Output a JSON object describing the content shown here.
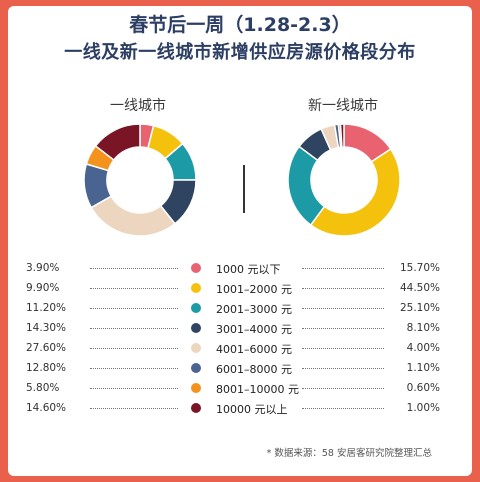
{
  "title_line1": "春节后一周（1.28-2.3）",
  "title_line2": "一线及新一线城市新增供应房源价格段分布",
  "note": "* 数据来源：58 安居客研究院整理汇总",
  "colors": [
    "#e8636f",
    "#f4c20d",
    "#1c9aa5",
    "#2e4460",
    "#edd6bf",
    "#4a6491",
    "#f5921e",
    "#7a1525"
  ],
  "chart_data": {
    "type": "pie",
    "donut": true,
    "categories": [
      "1000 元以下",
      "1001–2000 元",
      "2001–3000 元",
      "3001–4000 元",
      "4001–6000 元",
      "6001–8000 元",
      "8001–10000 元",
      "10000 元以上"
    ],
    "series": [
      {
        "name": "一线城市",
        "values": [
          3.9,
          9.9,
          11.2,
          14.3,
          27.6,
          12.8,
          5.8,
          14.6
        ],
        "labels": [
          "3.90%",
          "9.90%",
          "11.20%",
          "14.30%",
          "27.60%",
          "12.80%",
          "5.80%",
          "14.60%"
        ]
      },
      {
        "name": "新一线城市",
        "values": [
          15.7,
          44.5,
          25.1,
          8.1,
          4.0,
          1.1,
          0.6,
          1.0
        ],
        "labels": [
          "15.70%",
          "44.50%",
          "25.10%",
          "8.10%",
          "4.00%",
          "1.10%",
          "0.60%",
          "1.00%"
        ]
      }
    ]
  }
}
